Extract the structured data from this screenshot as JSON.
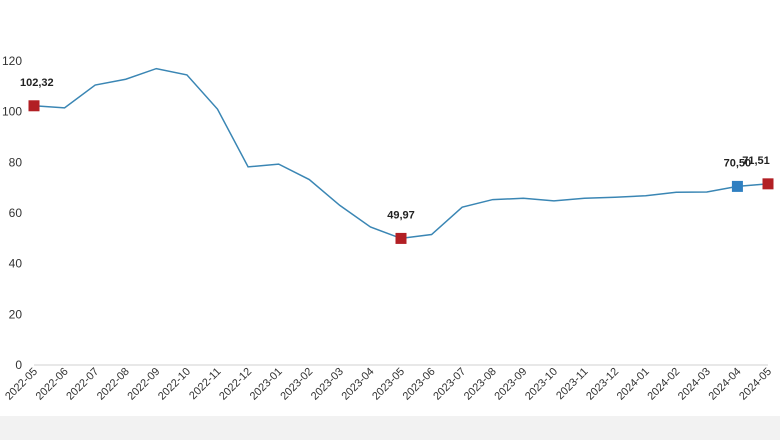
{
  "chart_data": {
    "type": "line",
    "title": "",
    "xlabel": "",
    "ylabel": "",
    "ylim": [
      0,
      120
    ],
    "yticks": [
      0,
      20,
      40,
      60,
      80,
      100,
      120
    ],
    "grid": false,
    "categories": [
      "2022-05",
      "2022-06",
      "2022-07",
      "2022-08",
      "2022-09",
      "2022-10",
      "2022-11",
      "2022-12",
      "2023-01",
      "2023-02",
      "2023-03",
      "2023-04",
      "2023-05",
      "2023-06",
      "2023-07",
      "2023-08",
      "2023-09",
      "2023-10",
      "2023-11",
      "2023-12",
      "2024-01",
      "2024-02",
      "2024-03",
      "2024-04",
      "2024-05"
    ],
    "series": [
      {
        "color": "#3a86b4",
        "values": [
          102.32,
          101.5,
          110.5,
          112.8,
          117.0,
          114.5,
          101.0,
          78.2,
          79.3,
          73.2,
          63.0,
          54.5,
          49.97,
          51.5,
          62.3,
          65.3,
          65.8,
          64.8,
          65.8,
          66.2,
          66.8,
          68.2,
          68.3,
          70.5,
          71.51
        ]
      }
    ],
    "markers": [
      {
        "index": 0,
        "label": "102,32",
        "color": "#b21f24"
      },
      {
        "index": 12,
        "label": "49,97",
        "color": "#b21f24"
      },
      {
        "index": 23,
        "label": "70,50",
        "color": "#2f7fc1"
      },
      {
        "index": 24,
        "label": "71,51",
        "color": "#b21f24"
      }
    ],
    "axis_color": "#d0d0d0",
    "bottom_band_color": "#f2f2f2"
  }
}
